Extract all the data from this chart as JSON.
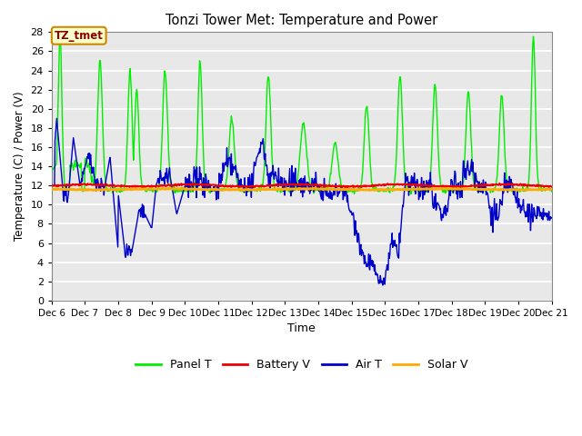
{
  "title": "Tonzi Tower Met: Temperature and Power",
  "xlabel": "Time",
  "ylabel": "Temperature (C) / Power (V)",
  "ylim": [
    0,
    28
  ],
  "yticks": [
    0,
    2,
    4,
    6,
    8,
    10,
    12,
    14,
    16,
    18,
    20,
    22,
    24,
    26,
    28
  ],
  "bg_color": "#ffffff",
  "plot_bg_color": "#e8e8e8",
  "grid_color": "#cccccc",
  "annotation_text": "TZ_tmet",
  "annotation_bg": "#ffffcc",
  "annotation_border": "#cc8800",
  "annotation_text_color": "#880000",
  "series": {
    "panel_t": {
      "label": "Panel T",
      "color": "#00ee00",
      "lw": 1.0
    },
    "battery_v": {
      "label": "Battery V",
      "color": "#ee0000",
      "lw": 1.5
    },
    "air_t": {
      "label": "Air T",
      "color": "#0000cc",
      "lw": 1.0
    },
    "solar_v": {
      "label": "Solar V",
      "color": "#ffaa00",
      "lw": 2.0
    }
  },
  "tick_days": [
    6,
    7,
    8,
    9,
    10,
    11,
    12,
    13,
    14,
    15,
    16,
    17,
    18,
    19,
    20,
    21
  ]
}
